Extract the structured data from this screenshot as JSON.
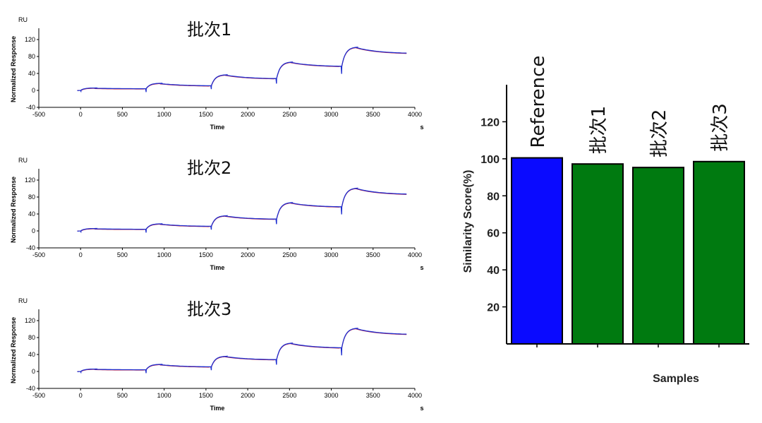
{
  "chart_data": [
    {
      "type": "line",
      "title": "批次1",
      "y_unit": "RU",
      "xlabel": "Time",
      "x_unit": "s",
      "ylabel": "Normalized Response",
      "xlim": [
        -500,
        4000
      ],
      "ylim": [
        -40,
        140
      ],
      "xticks": [
        -500,
        0,
        500,
        1000,
        1500,
        2000,
        2500,
        3000,
        3500,
        4000
      ],
      "yticks": [
        -40,
        0,
        40,
        80,
        120
      ],
      "cycles": [
        {
          "start": 0,
          "end_assoc": 180,
          "end_dissoc": 750,
          "peak": 5,
          "end": 4
        },
        {
          "start": 780,
          "end_assoc": 960,
          "end_dissoc": 1530,
          "peak": 16,
          "end": 11
        },
        {
          "start": 1560,
          "end_assoc": 1740,
          "end_dissoc": 2310,
          "peak": 36,
          "end": 28
        },
        {
          "start": 2340,
          "end_assoc": 2520,
          "end_dissoc": 3090,
          "peak": 66,
          "end": 57
        },
        {
          "start": 3120,
          "end_assoc": 3300,
          "end_dissoc": 3900,
          "peak": 101,
          "end": 88
        }
      ],
      "series_colors": {
        "measured": "#1f2fd0",
        "fit": "#c8102e"
      }
    },
    {
      "type": "line",
      "title": "批次2",
      "y_unit": "RU",
      "xlabel": "Time",
      "x_unit": "s",
      "ylabel": "Normalized Response",
      "xlim": [
        -500,
        4000
      ],
      "ylim": [
        -40,
        140
      ],
      "xticks": [
        -500,
        0,
        500,
        1000,
        1500,
        2000,
        2500,
        3000,
        3500,
        4000
      ],
      "yticks": [
        -40,
        0,
        40,
        80,
        120
      ],
      "cycles": [
        {
          "start": 0,
          "end_assoc": 180,
          "end_dissoc": 750,
          "peak": 5,
          "end": 4
        },
        {
          "start": 780,
          "end_assoc": 960,
          "end_dissoc": 1530,
          "peak": 16,
          "end": 11
        },
        {
          "start": 1560,
          "end_assoc": 1740,
          "end_dissoc": 2310,
          "peak": 35,
          "end": 28
        },
        {
          "start": 2340,
          "end_assoc": 2520,
          "end_dissoc": 3090,
          "peak": 66,
          "end": 57
        },
        {
          "start": 3120,
          "end_assoc": 3300,
          "end_dissoc": 3900,
          "peak": 100,
          "end": 87
        }
      ],
      "series_colors": {
        "measured": "#1f2fd0",
        "fit": "#c8102e"
      }
    },
    {
      "type": "line",
      "title": "批次3",
      "y_unit": "RU",
      "xlabel": "Time",
      "x_unit": "s",
      "ylabel": "Normalized Response",
      "xlim": [
        -500,
        4000
      ],
      "ylim": [
        -40,
        140
      ],
      "xticks": [
        -500,
        0,
        500,
        1000,
        1500,
        2000,
        2500,
        3000,
        3500,
        4000
      ],
      "yticks": [
        -40,
        0,
        40,
        80,
        120
      ],
      "cycles": [
        {
          "start": 0,
          "end_assoc": 180,
          "end_dissoc": 750,
          "peak": 5,
          "end": 4
        },
        {
          "start": 780,
          "end_assoc": 960,
          "end_dissoc": 1530,
          "peak": 16,
          "end": 11
        },
        {
          "start": 1560,
          "end_assoc": 1740,
          "end_dissoc": 2310,
          "peak": 35,
          "end": 28
        },
        {
          "start": 2340,
          "end_assoc": 2520,
          "end_dissoc": 3090,
          "peak": 66,
          "end": 56
        },
        {
          "start": 3120,
          "end_assoc": 3300,
          "end_dissoc": 3900,
          "peak": 101,
          "end": 88
        }
      ],
      "series_colors": {
        "measured": "#1f2fd0",
        "fit": "#c8102e"
      }
    },
    {
      "type": "bar",
      "categories": [
        "Reference",
        "批次1",
        "批次2",
        "批次3"
      ],
      "values": [
        100.5,
        97.2,
        95.3,
        98.5
      ],
      "colors": [
        "#0a0aff",
        "#007a10",
        "#007a10",
        "#007a10"
      ],
      "xlabel": "Samples",
      "ylabel": "Similarity Score(%)",
      "ylim": [
        0,
        140
      ],
      "yticks": [
        20,
        40,
        60,
        80,
        100,
        120
      ],
      "grid": false
    }
  ]
}
